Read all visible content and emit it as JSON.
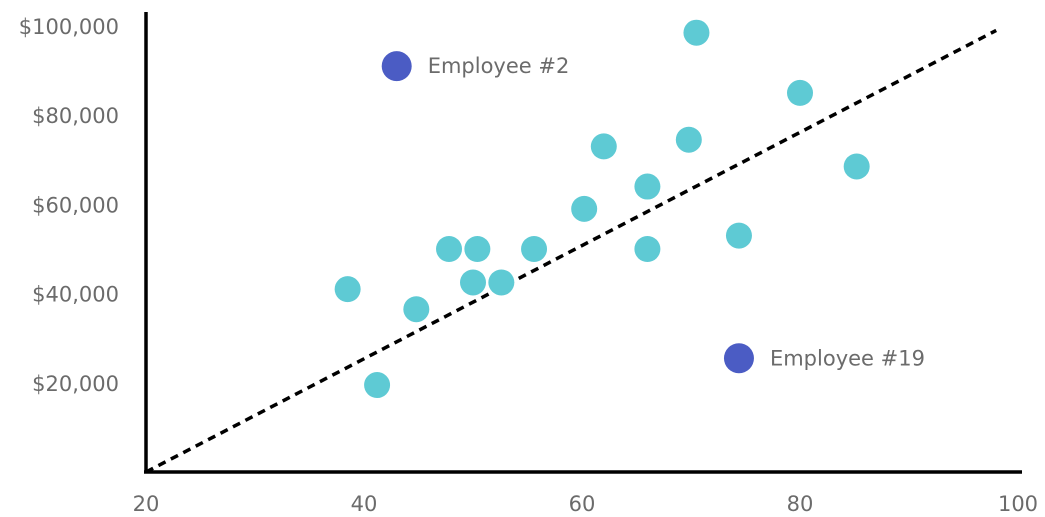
{
  "chart_data": {
    "type": "scatter",
    "xlim": [
      20,
      100
    ],
    "ylim": [
      0,
      100000
    ],
    "x_ticks": [
      "20",
      "40",
      "60",
      "80",
      "100"
    ],
    "y_ticks": [
      {
        "value": 20000,
        "label": "$20,000"
      },
      {
        "value": 40000,
        "label": "$40,000"
      },
      {
        "value": 60000,
        "label": "$60,000"
      },
      {
        "value": 80000,
        "label": "$80,000"
      },
      {
        "value": 100000,
        "label": "$100,000"
      }
    ],
    "grid": false,
    "colors": {
      "points": "#5ecad4",
      "highlight": "#4b5cc4",
      "trendline": "#000000",
      "axis": "#000000"
    },
    "points": [
      {
        "x": 38.5,
        "y": 41000
      },
      {
        "x": 41.2,
        "y": 19500
      },
      {
        "x": 44.8,
        "y": 36500
      },
      {
        "x": 47.8,
        "y": 50000
      },
      {
        "x": 50.0,
        "y": 42500
      },
      {
        "x": 50.4,
        "y": 50000
      },
      {
        "x": 52.6,
        "y": 42500
      },
      {
        "x": 55.6,
        "y": 50000
      },
      {
        "x": 60.2,
        "y": 59000
      },
      {
        "x": 62.0,
        "y": 73000
      },
      {
        "x": 66.0,
        "y": 64000
      },
      {
        "x": 66.0,
        "y": 50000
      },
      {
        "x": 69.8,
        "y": 74500
      },
      {
        "x": 70.5,
        "y": 98500
      },
      {
        "x": 74.4,
        "y": 53000
      },
      {
        "x": 80.0,
        "y": 85000
      },
      {
        "x": 85.2,
        "y": 68500
      }
    ],
    "highlighted": [
      {
        "x": 43.0,
        "y": 91000,
        "label": "Employee #2"
      },
      {
        "x": 74.4,
        "y": 25500,
        "label": "Employee #19"
      }
    ],
    "trendline": {
      "x": [
        20,
        98
      ],
      "y": [
        0,
        99000
      ],
      "style": "dashed"
    }
  }
}
